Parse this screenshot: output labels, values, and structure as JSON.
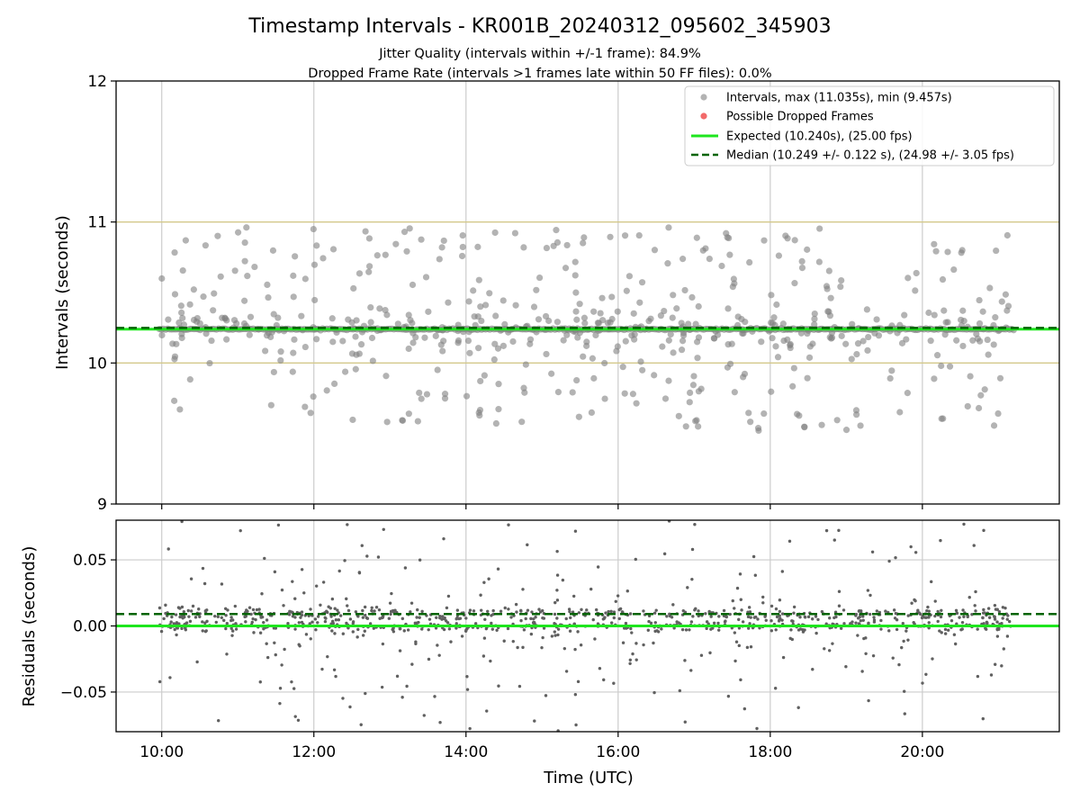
{
  "chart_data": {
    "title": "Timestamp Intervals - KR001B_20240312_095602_345903",
    "subtitles": [
      "Jitter Quality (intervals within +/-1 frame): 84.9%",
      "Dropped Frame Rate (intervals >1 frames late within 50 FF files): 0.0%"
    ],
    "xlabel": "Time (UTC)",
    "x_tick_labels": [
      "10:00",
      "12:00",
      "14:00",
      "16:00",
      "18:00",
      "20:00"
    ],
    "x_ticks_hours": [
      10,
      12,
      14,
      16,
      18,
      20
    ],
    "xlim_hours": [
      9.4,
      21.8
    ],
    "data_time_range_hours": [
      9.97,
      21.2
    ],
    "panels": [
      {
        "type": "scatter",
        "ylabel": "Intervals (seconds)",
        "ylim": [
          9,
          12
        ],
        "y_ticks": [
          9,
          10,
          11,
          12
        ],
        "y_tick_labels": [
          "9",
          "10",
          "11",
          "12"
        ],
        "horizontal_lines": [
          10,
          11
        ],
        "series": [
          {
            "name": "Intervals, max (11.035s), min (9.457s)",
            "kind": "scatter",
            "color": "#808080",
            "max": 11.035,
            "min": 9.457,
            "center": 10.24
          },
          {
            "name": "Possible Dropped Frames",
            "kind": "scatter",
            "color": "#f05050",
            "count": 0
          },
          {
            "name": "Expected (10.240s), (25.00 fps)",
            "kind": "line",
            "color": "#1ee61e",
            "value": 10.24
          },
          {
            "name": "Median (10.249 +/- 0.122 s), (24.98 +/- 3.05 fps)",
            "kind": "dashed-line",
            "color": "#006400",
            "value": 10.249
          }
        ],
        "legend_position": "top-right",
        "grid": "x"
      },
      {
        "type": "scatter",
        "ylabel": "Residuals (seconds)",
        "ylim": [
          -0.08,
          0.08
        ],
        "y_ticks": [
          -0.05,
          0.0,
          0.05
        ],
        "y_tick_labels": [
          "−0.05",
          "0.00",
          "0.05"
        ],
        "series": [
          {
            "name": "residuals",
            "kind": "scatter",
            "color": "#606060",
            "center": 0.009
          },
          {
            "name": "expected",
            "kind": "line",
            "color": "#1ee61e",
            "value": 0.0
          },
          {
            "name": "median",
            "kind": "dashed-line",
            "color": "#006400",
            "value": 0.009
          }
        ],
        "grid": "both"
      }
    ]
  }
}
